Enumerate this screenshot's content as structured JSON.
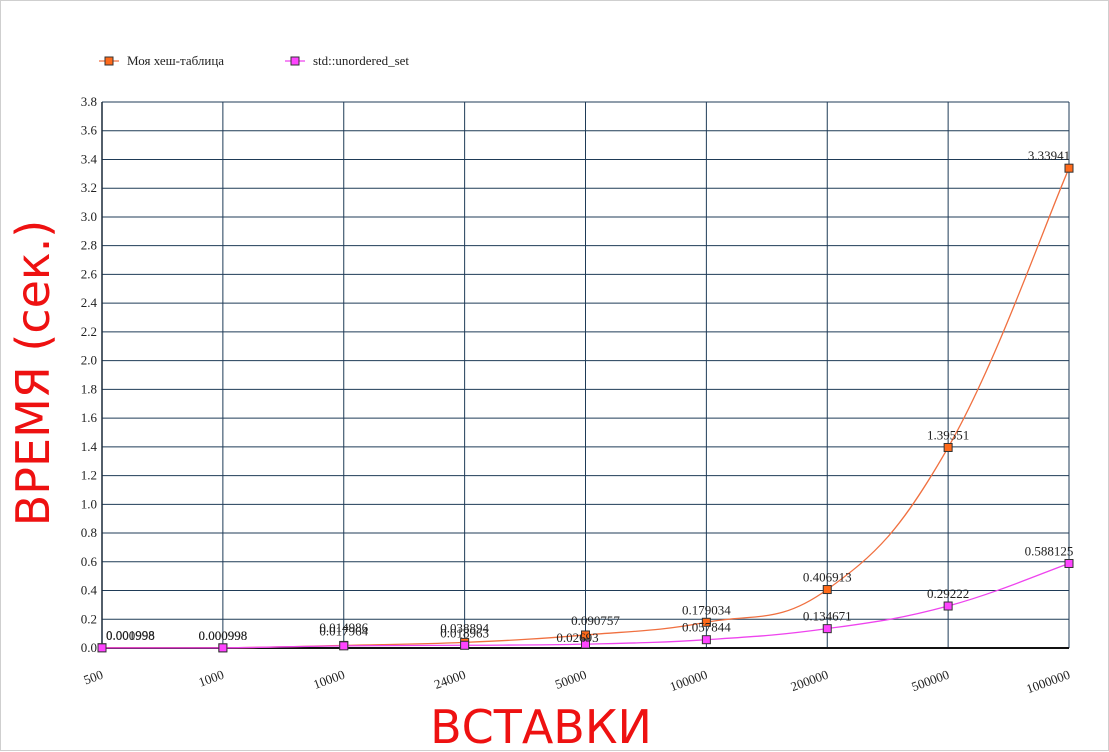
{
  "chart_data": {
    "type": "line",
    "title": "",
    "xlabel": "ВСТАВКИ",
    "ylabel": "ВРЕМЯ (сек.)",
    "categories": [
      "500",
      "1000",
      "10000",
      "24000",
      "50000",
      "100000",
      "200000",
      "500000",
      "1000000"
    ],
    "ylim": [
      0,
      3.8
    ],
    "yticks": [
      "0.0",
      "0.2",
      "0.4",
      "0.6",
      "0.8",
      "1.0",
      "1.2",
      "1.4",
      "1.6",
      "1.8",
      "2.0",
      "2.2",
      "2.4",
      "2.6",
      "2.8",
      "3.0",
      "3.2",
      "3.4",
      "3.6",
      "3.8"
    ],
    "grid": true,
    "legend_position": "top-left",
    "series": [
      {
        "name": "Моя хеш-таблица",
        "color": "#f07040",
        "marker_color": "#ff6a1a",
        "values": [
          0.001998,
          0.000998,
          0.017964,
          0.038894,
          0.090757,
          0.179034,
          0.406913,
          1.39551,
          3.33941
        ],
        "labels": [
          "0.001998",
          "0.000998",
          "0.017964",
          "0.038894",
          "0.090757",
          "0.179034",
          "0.406913",
          "1.39551",
          "3.33941"
        ]
      },
      {
        "name": "std::unordered_set",
        "color": "#ee44ee",
        "marker_color": "#ff44ff",
        "values": [
          0.000998,
          0.000998,
          0.014986,
          0.018963,
          0.02693,
          0.057844,
          0.134671,
          0.29222,
          0.588125
        ],
        "labels": [
          "0.000998",
          "0.000998",
          "0.014986",
          "0.018963",
          "0.02693",
          "0.057844",
          "0.134671",
          "0.29222",
          "0.588125"
        ]
      }
    ]
  }
}
